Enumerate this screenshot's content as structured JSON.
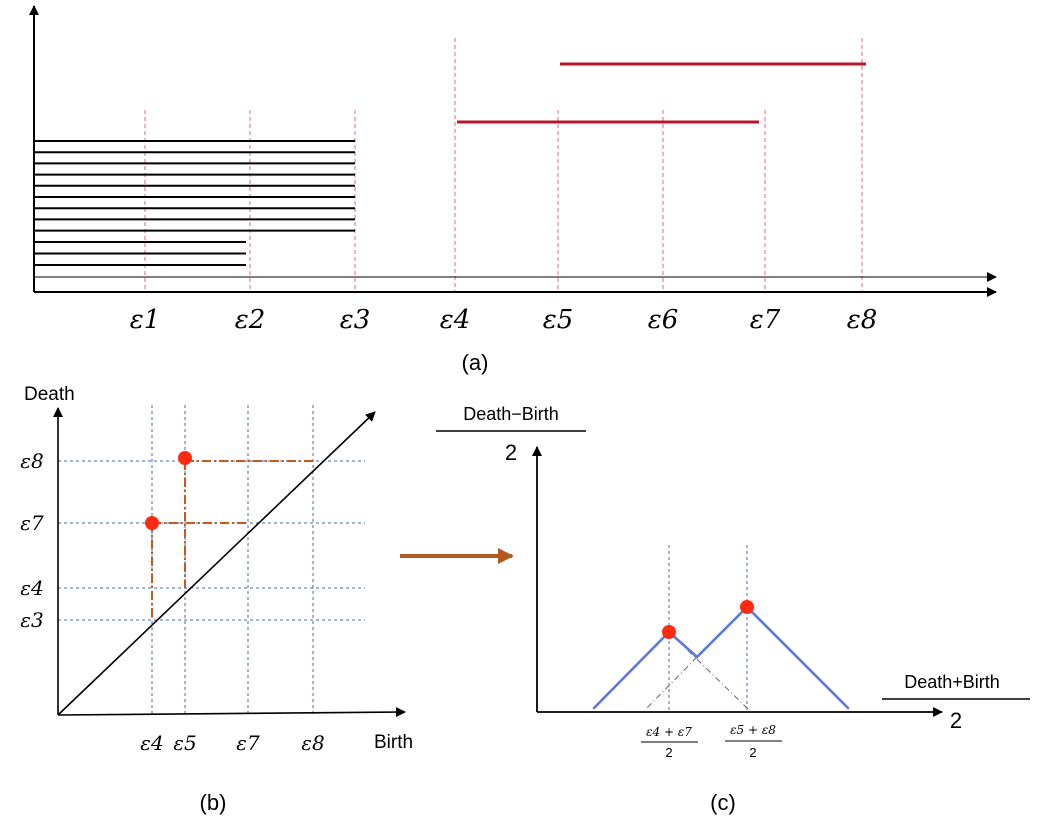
{
  "panel_a": {
    "caption": "(a)",
    "tick_labels": [
      "ε1",
      "ε2",
      "ε3",
      "ε4",
      "ε5",
      "ε6",
      "ε7",
      "ε8"
    ],
    "black_bars_to_e3": 9,
    "black_bars_to_e2": 3,
    "red_bars": [
      {
        "start": "ε4",
        "end": "ε7"
      },
      {
        "start": "ε5",
        "end": "ε8"
      }
    ]
  },
  "panel_b": {
    "caption": "(b)",
    "y_axis_label": "Death",
    "x_axis_label": "Birth",
    "x_ticks": [
      "ε4",
      "ε5",
      "ε7",
      "ε8"
    ],
    "y_ticks": [
      "ε8",
      "ε7",
      "ε4",
      "ε3"
    ],
    "points": [
      {
        "birth": "ε4",
        "death": "ε7"
      },
      {
        "birth": "ε5",
        "death": "ε8"
      }
    ]
  },
  "panel_c": {
    "caption": "(c)",
    "y_axis_num": "Death−Birth",
    "y_axis_den": "2",
    "x_axis_num": "Death+Birth",
    "x_axis_den": "2",
    "peak1_num": "ε4 + ε7",
    "peak1_den": "2",
    "peak2_num": "ε5 + ε8",
    "peak2_den": "2"
  },
  "colors": {
    "bar_black": "#000000",
    "bar_red": "#b5172b",
    "guide_red": "#e0697a",
    "guide_blue": "#3a6fb0",
    "point_red": "#ff2a12",
    "dash_orange": "#c8581e",
    "arrow_brown": "#b35a1f",
    "landscape_blue": "#5a78e0"
  }
}
